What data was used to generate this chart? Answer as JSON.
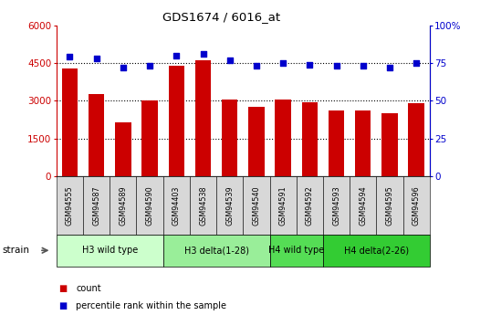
{
  "title": "GDS1674 / 6016_at",
  "samples": [
    "GSM94555",
    "GSM94587",
    "GSM94589",
    "GSM94590",
    "GSM94403",
    "GSM94538",
    "GSM94539",
    "GSM94540",
    "GSM94591",
    "GSM94592",
    "GSM94593",
    "GSM94594",
    "GSM94595",
    "GSM94596"
  ],
  "counts": [
    4300,
    3250,
    2150,
    3000,
    4400,
    4600,
    3050,
    2750,
    3050,
    2950,
    2600,
    2600,
    2500,
    2900
  ],
  "percentiles": [
    79,
    78,
    72,
    73,
    80,
    81,
    77,
    73,
    75,
    74,
    73,
    73,
    72,
    75
  ],
  "bar_color": "#cc0000",
  "dot_color": "#0000cc",
  "ylim_left": [
    0,
    6000
  ],
  "ylim_right": [
    0,
    100
  ],
  "yticks_left": [
    0,
    1500,
    3000,
    4500,
    6000
  ],
  "yticks_right": [
    0,
    25,
    50,
    75,
    100
  ],
  "grid_values": [
    1500,
    3000,
    4500
  ],
  "group_configs": [
    {
      "label": "H3 wild type",
      "start": 0,
      "end": 3,
      "color": "#ccffcc"
    },
    {
      "label": "H3 delta(1-28)",
      "start": 4,
      "end": 7,
      "color": "#99ee99"
    },
    {
      "label": "H4 wild type",
      "start": 8,
      "end": 9,
      "color": "#55dd55"
    },
    {
      "label": "H4 delta(2-26)",
      "start": 10,
      "end": 13,
      "color": "#33cc33"
    }
  ],
  "strain_label": "strain",
  "legend_count_label": "count",
  "legend_percentile_label": "percentile rank within the sample",
  "left_tick_color": "#cc0000",
  "right_tick_color": "#0000cc",
  "sample_box_color": "#d8d8d8",
  "background_color": "#ffffff"
}
